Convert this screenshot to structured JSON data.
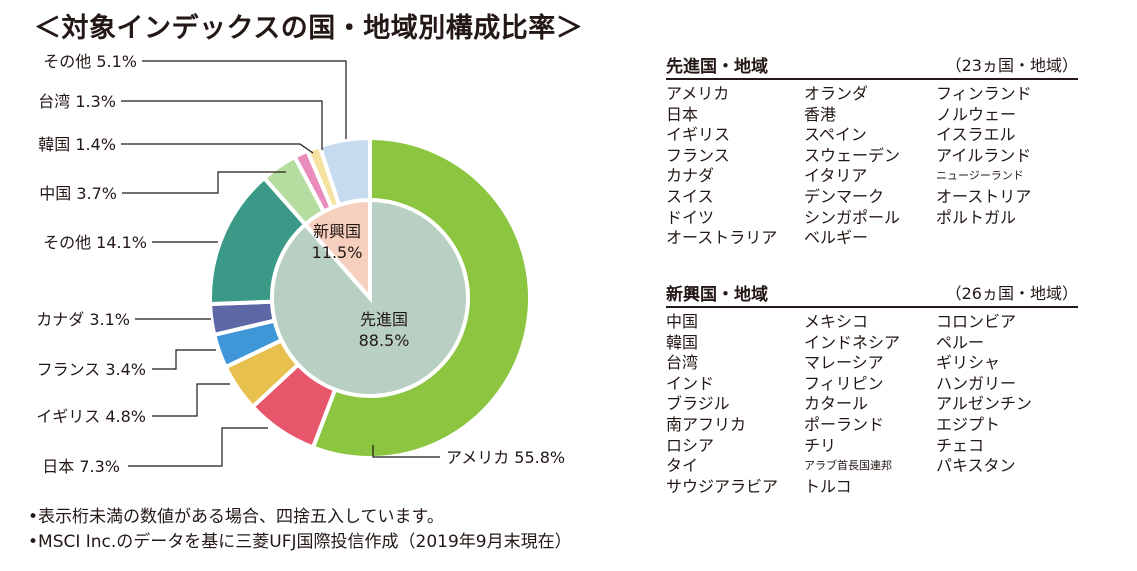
{
  "title": "＜対象インデックスの国・地域別構成比率＞",
  "chart_data": {
    "type": "pie",
    "outer": [
      {
        "name": "アメリカ",
        "value": 55.8,
        "label": "アメリカ 55.8%",
        "color": "#8cc540"
      },
      {
        "name": "日本",
        "value": 7.3,
        "label": "日本 7.3%",
        "color": "#e8566b"
      },
      {
        "name": "イギリス",
        "value": 4.8,
        "label": "イギリス 4.8%",
        "color": "#e8c04d"
      },
      {
        "name": "フランス",
        "value": 3.4,
        "label": "フランス 3.4%",
        "color": "#3f97d8"
      },
      {
        "name": "カナダ",
        "value": 3.1,
        "label": "カナダ 3.1%",
        "color": "#5e67a6"
      },
      {
        "name": "その他",
        "value": 14.1,
        "label": "その他 14.1%",
        "color": "#3a9a87"
      },
      {
        "name": "中国",
        "value": 3.7,
        "label": "中国 3.7%",
        "color": "#b6dda0"
      },
      {
        "name": "韓国",
        "value": 1.4,
        "label": "韓国 1.4%",
        "color": "#e98bbb"
      },
      {
        "name": "台湾",
        "value": 1.3,
        "label": "台湾 1.3%",
        "color": "#f5e2a0"
      },
      {
        "name": "その他",
        "value": 5.1,
        "label": "その他 5.1%",
        "color": "#c7dbef"
      }
    ],
    "inner": [
      {
        "name": "先進国",
        "value": 88.5,
        "label_lines": [
          "先進国",
          "88.5%"
        ],
        "color": "#b7d0c3"
      },
      {
        "name": "新興国",
        "value": 11.5,
        "label_lines": [
          "新興国",
          "11.5%"
        ],
        "color": "#f6cfbe"
      }
    ]
  },
  "developed": {
    "title": "先進国・地域",
    "count": "（23ヵ国・地域）",
    "columns": [
      [
        "アメリカ",
        "日本",
        "イギリス",
        "フランス",
        "カナダ",
        "スイス",
        "ドイツ",
        "オーストラリア"
      ],
      [
        "オランダ",
        "香港",
        "スペイン",
        "スウェーデン",
        "イタリア",
        "デンマーク",
        "シンガポール",
        "ベルギー"
      ],
      [
        "フィンランド",
        "ノルウェー",
        "イスラエル",
        "アイルランド",
        "ニュージーランド",
        "オーストリア",
        "ポルトガル"
      ]
    ]
  },
  "emerging": {
    "title": "新興国・地域",
    "count": "（26ヵ国・地域）",
    "columns": [
      [
        "中国",
        "韓国",
        "台湾",
        "インド",
        "ブラジル",
        "南アフリカ",
        "ロシア",
        "タイ",
        "サウジアラビア"
      ],
      [
        "メキシコ",
        "インドネシア",
        "マレーシア",
        "フィリピン",
        "カタール",
        "ポーランド",
        "チリ",
        "アラブ首長国連邦",
        "トルコ"
      ],
      [
        "コロンビア",
        "ペルー",
        "ギリシャ",
        "ハンガリー",
        "アルゼンチン",
        "エジプト",
        "チェコ",
        "パキスタン"
      ]
    ]
  },
  "notes": [
    "•表示桁未満の数値がある場合、四捨五入しています。",
    "•MSCI Inc.のデータを基に三菱UFJ国際投信作成（2019年9月末現在）"
  ]
}
